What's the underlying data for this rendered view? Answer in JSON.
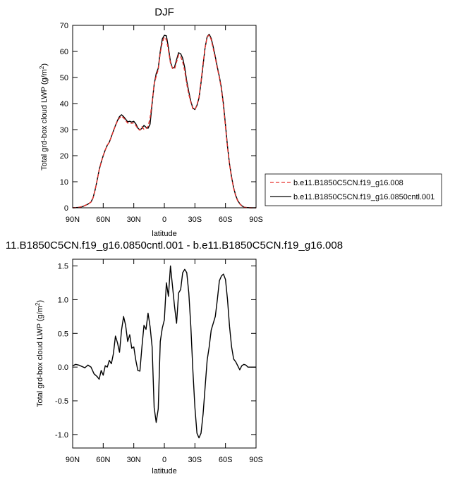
{
  "chart_data": [
    {
      "type": "line",
      "title": "DJF",
      "xlabel": "latitude",
      "ylabel": "Total grd-box cloud LWP (g/m",
      "ylabel_sup": "2",
      "ylabel_end": ")",
      "xlim": [
        90,
        -90
      ],
      "ylim": [
        0,
        70
      ],
      "x_ticks": [
        90,
        60,
        30,
        0,
        -30,
        -60,
        -90
      ],
      "x_tick_labels": [
        "90N",
        "60N",
        "30N",
        "0",
        "30S",
        "60S",
        "90S"
      ],
      "y_ticks": [
        0,
        10,
        20,
        30,
        40,
        50,
        60,
        70
      ],
      "y_tick_labels": [
        "0",
        "10",
        "20",
        "30",
        "40",
        "50",
        "60",
        "70"
      ],
      "legend": "right",
      "x": [
        90,
        85,
        80,
        75,
        72,
        70,
        68,
        66,
        64,
        62,
        60,
        58,
        56,
        54,
        52,
        50,
        48,
        46,
        44,
        42,
        40,
        38,
        36,
        34,
        32,
        30,
        28,
        26,
        24,
        22,
        20,
        18,
        16,
        14,
        12,
        10,
        8,
        6,
        4,
        2,
        0,
        -2,
        -4,
        -6,
        -8,
        -10,
        -12,
        -14,
        -16,
        -18,
        -20,
        -22,
        -24,
        -26,
        -28,
        -30,
        -32,
        -34,
        -36,
        -38,
        -40,
        -42,
        -44,
        -46,
        -48,
        -50,
        -52,
        -54,
        -56,
        -58,
        -60,
        -62,
        -64,
        -66,
        -68,
        -70,
        -72,
        -74,
        -76,
        -78,
        -80,
        -85,
        -90
      ],
      "series": [
        {
          "name": "b.e11.B1850C5CN.f19_g16.008",
          "color": "#e8302c",
          "dash": "dashed",
          "values": [
            0,
            0.1,
            0.5,
            1.4,
            2.2,
            3.8,
            6.8,
            10.5,
            14.5,
            17.5,
            20,
            22.2,
            24,
            25.2,
            27.3,
            29.5,
            31.5,
            33.3,
            34.5,
            35.2,
            34.5,
            33.5,
            32.5,
            32.7,
            32.4,
            32.6,
            31.6,
            30.3,
            29.8,
            31.1,
            30.1,
            30.4,
            31.2,
            34.5,
            40.5,
            47.5,
            50.5,
            53,
            59.5,
            63.5,
            65.5,
            64.5,
            60.5,
            55.5,
            53.5,
            53.2,
            56,
            58.7,
            58,
            56,
            52.5,
            47.5,
            43.5,
            40.5,
            38,
            37.7,
            39.5,
            42.5,
            48.5,
            55.5,
            61.5,
            65.5,
            66.3,
            64.5,
            61,
            57.5,
            53.5,
            50,
            45.5,
            39,
            31,
            23,
            16.5,
            11.5,
            7.5,
            4.5,
            2.6,
            1.5,
            0.7,
            0.3,
            0.1,
            0,
            0
          ]
        },
        {
          "name": "b.e11.B1850C5CN.f19_g16.0850cntl.001",
          "color": "#000000",
          "dash": "solid",
          "values": [
            0,
            0.1,
            0.5,
            1.4,
            2.2,
            3.8,
            6.8,
            10.5,
            14.5,
            17.5,
            20,
            22.2,
            24,
            25.2,
            27.3,
            29.5,
            31.6,
            33.5,
            35,
            35.7,
            35,
            34,
            33,
            33.2,
            32.9,
            33.2,
            32.2,
            30.6,
            29.8,
            30.5,
            31.6,
            30.9,
            30.5,
            32.1,
            40,
            47.3,
            51.5,
            53.5,
            60,
            64.8,
            66.2,
            66,
            61.5,
            56,
            53.5,
            54,
            56.8,
            59.5,
            59.1,
            57.4,
            53.8,
            48.5,
            44.5,
            40.8,
            38.3,
            37.7,
            39.3,
            42.1,
            48,
            54.7,
            61.5,
            65.6,
            66.6,
            65,
            61.7,
            58,
            54,
            50.3,
            46,
            39.8,
            31.8,
            23.5,
            16.8,
            11.8,
            7.7,
            4.8,
            2.8,
            1.6,
            0.8,
            0.3,
            0.1,
            0,
            0
          ]
        }
      ]
    },
    {
      "type": "line",
      "title": "11.B1850C5CN.f19_g16.0850cntl.001 - b.e11.B1850C5CN.f19_g16.008",
      "xlabel": "latitude",
      "ylabel": "Total grd-box cloud LWP (g/m",
      "ylabel_sup": "2",
      "ylabel_end": ")",
      "xlim": [
        90,
        -90
      ],
      "ylim": [
        -1.2,
        1.6
      ],
      "x_ticks": [
        90,
        60,
        30,
        0,
        -30,
        -60,
        -90
      ],
      "x_tick_labels": [
        "90N",
        "60N",
        "30N",
        "0",
        "30S",
        "60S",
        "90S"
      ],
      "y_ticks": [
        -1.0,
        -0.5,
        0.0,
        0.5,
        1.0,
        1.5
      ],
      "y_tick_labels": [
        "-1.0",
        "-0.5",
        "0.0",
        "0.5",
        "1.0",
        "1.5"
      ],
      "x": [
        90,
        87,
        84,
        81,
        78,
        75,
        72,
        69,
        66,
        64,
        62,
        60,
        58,
        56,
        54,
        52,
        50,
        48,
        46,
        44,
        42,
        40,
        38,
        36,
        34,
        32,
        30,
        28,
        26,
        24,
        22,
        20,
        18,
        16,
        14,
        12,
        10,
        8,
        6,
        4,
        2,
        0,
        -2,
        -4,
        -6,
        -8,
        -10,
        -12,
        -14,
        -16,
        -18,
        -20,
        -22,
        -24,
        -26,
        -28,
        -30,
        -32,
        -34,
        -36,
        -38,
        -40,
        -42,
        -44,
        -46,
        -48,
        -50,
        -52,
        -54,
        -56,
        -58,
        -60,
        -62,
        -64,
        -66,
        -68,
        -70,
        -72,
        -74,
        -76,
        -78,
        -80,
        -82,
        -84,
        -87,
        -90
      ],
      "series": [
        {
          "name": "",
          "color": "#000000",
          "dash": "solid",
          "values": [
            0.02,
            0.04,
            0.03,
            0.01,
            -0.01,
            0.03,
            0,
            -0.1,
            -0.14,
            -0.18,
            -0.05,
            -0.12,
            0.02,
            0,
            0.1,
            0.05,
            0.2,
            0.46,
            0.36,
            0.22,
            0.55,
            0.75,
            0.62,
            0.38,
            0.48,
            0.28,
            0.3,
            0.1,
            -0.05,
            -0.06,
            0.3,
            0.62,
            0.56,
            0.8,
            0.6,
            0.3,
            -0.6,
            -0.82,
            -0.62,
            0.38,
            0.58,
            0.7,
            1.25,
            1.05,
            1.5,
            1.2,
            0.9,
            0.65,
            1.1,
            1.15,
            1.4,
            1.45,
            1.4,
            1.1,
            0.6,
            -0.05,
            -0.6,
            -0.98,
            -1.05,
            -0.98,
            -0.7,
            -0.3,
            0.1,
            0.3,
            0.55,
            0.65,
            0.75,
            1.0,
            1.28,
            1.35,
            1.38,
            1.3,
            1.0,
            0.6,
            0.3,
            0.12,
            0.08,
            0.02,
            -0.04,
            0.02,
            0.04,
            0.03,
            0,
            0,
            0,
            0
          ]
        }
      ]
    }
  ]
}
